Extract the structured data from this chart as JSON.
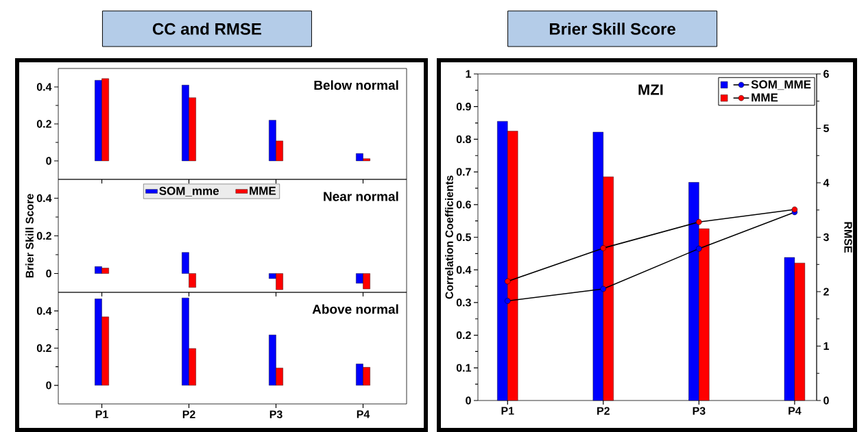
{
  "chart_data": [
    {
      "type": "bar",
      "title": "CC and RMSE",
      "subtitle": "Below normal",
      "categories": [
        null,
        null,
        null,
        null
      ],
      "ylim": [
        -0.1,
        0.5
      ],
      "yticks": [
        0,
        0.2,
        0.4
      ],
      "tick_labels": "y",
      "series": [
        {
          "color": "#0000ff",
          "values": [
            0.436,
            0.41,
            0.22,
            0.04
          ]
        },
        {
          "color": "#ff0000",
          "values": [
            0.445,
            0.342,
            0.108,
            0.012
          ]
        }
      ]
    },
    {
      "type": "bar",
      "subtitle": "Near normal",
      "ylabel": "Brier Skill Score",
      "categories": [
        null,
        null,
        null,
        null
      ],
      "ylim": [
        -0.1,
        0.5
      ],
      "yticks": [
        0,
        0.2,
        0.4
      ],
      "tick_labels": "y",
      "legend": "top",
      "series": [
        {
          "name": "SOM_mme",
          "color": "#0000ff",
          "values": [
            0.037,
            0.112,
            -0.027,
            -0.052
          ]
        },
        {
          "name": "MME",
          "color": "#ff0000",
          "values": [
            0.029,
            -0.074,
            -0.086,
            -0.082
          ]
        }
      ]
    },
    {
      "type": "bar",
      "subtitle": "Above normal",
      "categories": [
        "P1",
        "P2",
        "P3",
        "P4"
      ],
      "ylim": [
        -0.1,
        0.5
      ],
      "yticks": [
        0,
        0.2,
        0.4
      ],
      "series": [
        {
          "color": "#0000ff",
          "values": [
            0.465,
            0.47,
            0.271,
            0.115
          ]
        },
        {
          "color": "#ff0000",
          "values": [
            0.368,
            0.198,
            0.093,
            0.097
          ]
        }
      ]
    },
    {
      "type": "bar",
      "title": "Brier Skill Score",
      "subtitle": "MZI",
      "categories": [
        "P1",
        "P2",
        "P3",
        "P4"
      ],
      "ylabel": "Correlation Coefficients",
      "y2label": "RMSE",
      "ylim": [
        0,
        1
      ],
      "yticks": [
        0,
        0.1,
        0.2,
        0.3,
        0.4,
        0.5,
        0.6,
        0.7,
        0.8,
        0.9,
        1
      ],
      "y2lim": [
        0,
        6
      ],
      "y2ticks": [
        0,
        1,
        2,
        3,
        4,
        5,
        6
      ],
      "legend": "top right",
      "marker": "circle",
      "series": [
        {
          "color": "#0000ff",
          "values": [
            0.855,
            0.822,
            0.668,
            0.438
          ]
        },
        {
          "color": "#ff0000",
          "values": [
            0.825,
            0.685,
            0.526,
            0.421
          ]
        },
        {
          "type": "line",
          "axis": "y2",
          "name": "SOM_MME",
          "color": "#0000ff",
          "values": [
            1.83,
            2.05,
            2.79,
            3.46
          ]
        },
        {
          "type": "line",
          "axis": "y2",
          "name": "MME",
          "color": "#ff0000",
          "values": [
            2.19,
            2.8,
            3.28,
            3.51
          ]
        }
      ]
    }
  ]
}
